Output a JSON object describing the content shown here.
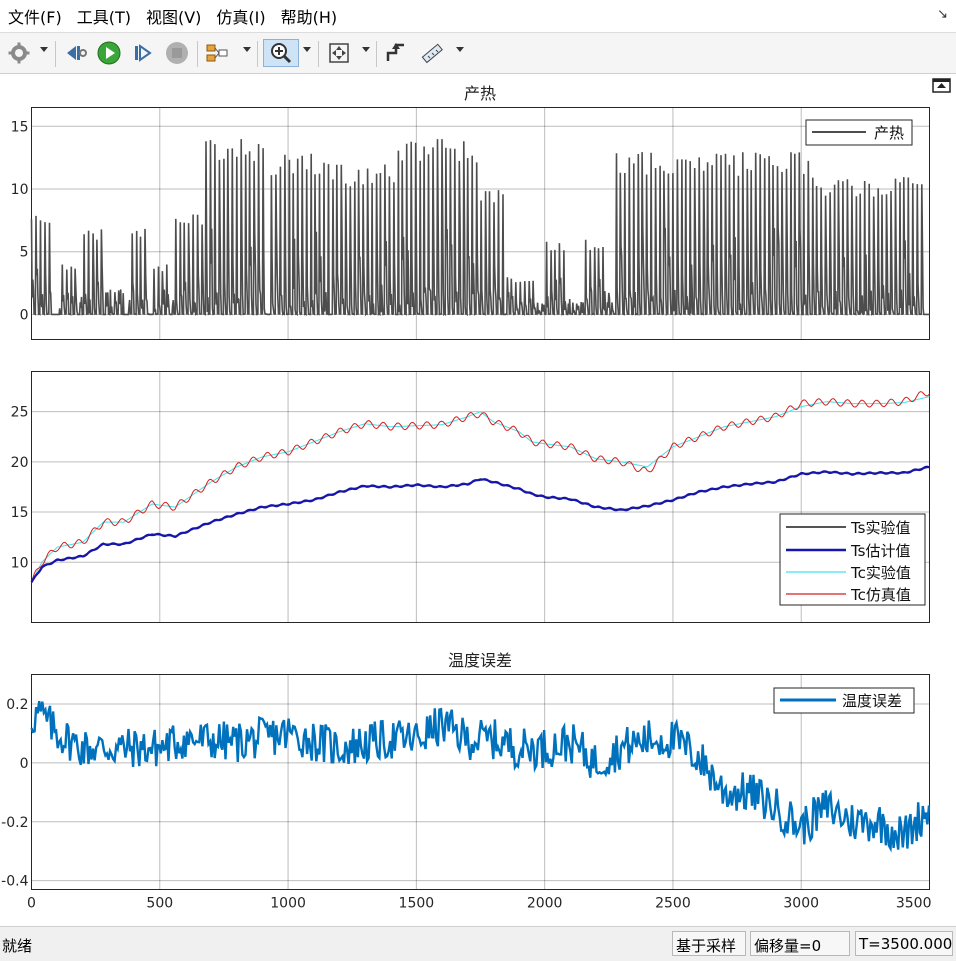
{
  "menu": [
    "文件(F)",
    "工具(T)",
    "视图(V)",
    "仿真(I)",
    "帮助(H)"
  ],
  "colors": {
    "heat": "#4d4d4d",
    "ts_exp": "#555555",
    "ts_est": "#1515b0",
    "tc_exp": "#3fe3ef",
    "tc_sim": "#d42020",
    "err": "#0072bd"
  },
  "chart_data": [
    {
      "type": "line",
      "title": "产热",
      "xlim": [
        0,
        3500
      ],
      "ylim": [
        -2,
        16.5
      ],
      "yticks": [
        0,
        5,
        10,
        15
      ],
      "xticks": [
        500,
        1000,
        1500,
        2000,
        2500,
        3000,
        3500
      ],
      "grid": true,
      "legend_position": "top-right",
      "series": [
        {
          "name": "产热",
          "segments": [
            {
              "x": [
                0,
                80
              ],
              "peak": 8
            },
            {
              "x": [
                110,
                180
              ],
              "peak": 4
            },
            {
              "x": [
                190,
                280
              ],
              "peak": 7
            },
            {
              "x": [
                290,
                360
              ],
              "peak": 2
            },
            {
              "x": [
                380,
                460
              ],
              "peak": 7
            },
            {
              "x": [
                470,
                540
              ],
              "peak": 4
            },
            {
              "x": [
                550,
                680
              ],
              "peak": 8
            },
            {
              "x": [
                680,
                920
              ],
              "peak": 14
            },
            {
              "x": [
                930,
                1160
              ],
              "peak": 13
            },
            {
              "x": [
                1170,
                1420
              ],
              "peak": 12
            },
            {
              "x": [
                1430,
                1740
              ],
              "peak": 14
            },
            {
              "x": [
                1740,
                1840
              ],
              "peak": 10
            },
            {
              "x": [
                1850,
                1960
              ],
              "peak": 3
            },
            {
              "x": [
                1960,
                2000
              ],
              "peak": 1
            },
            {
              "x": [
                2000,
                2080
              ],
              "peak": 6
            },
            {
              "x": [
                2080,
                2160
              ],
              "peak": 1
            },
            {
              "x": [
                2160,
                2230
              ],
              "peak": 6
            },
            {
              "x": [
                2230,
                2280
              ],
              "peak": 1
            },
            {
              "x": [
                2280,
                3030
              ],
              "peak": 13
            },
            {
              "x": [
                3030,
                3480
              ],
              "peak": 11
            }
          ]
        }
      ]
    },
    {
      "type": "line",
      "title": "",
      "xlim": [
        0,
        3500
      ],
      "ylim": [
        4,
        29
      ],
      "yticks": [
        10,
        15,
        20,
        25
      ],
      "xticks": [
        500,
        1000,
        1500,
        2000,
        2500,
        3000,
        3500
      ],
      "grid": true,
      "legend_position": "bottom-right",
      "x": [
        0,
        40,
        100,
        200,
        280,
        360,
        470,
        560,
        700,
        800,
        900,
        1000,
        1100,
        1200,
        1300,
        1400,
        1500,
        1600,
        1700,
        1750,
        1800,
        1900,
        1950,
        2000,
        2100,
        2200,
        2300,
        2400,
        2500,
        2600,
        2700,
        2800,
        2900,
        3000,
        3100,
        3200,
        3300,
        3400,
        3500
      ],
      "series": [
        {
          "name": "Ts实验值",
          "values": [
            8,
            9.5,
            10.2,
            10.6,
            11.8,
            11.8,
            12.8,
            12.6,
            14,
            14.8,
            15.5,
            15.8,
            16.2,
            17,
            17.6,
            17.5,
            17.7,
            17.5,
            17.8,
            18.3,
            18,
            17.3,
            16.8,
            16.5,
            16.3,
            15.5,
            15.2,
            15.6,
            16.2,
            17,
            17.5,
            17.8,
            18,
            18.8,
            19,
            18.8,
            18.9,
            18.9,
            19.5
          ]
        },
        {
          "name": "Ts估计值",
          "values": [
            8,
            9.5,
            10.2,
            10.6,
            11.8,
            11.8,
            12.8,
            12.6,
            14,
            14.8,
            15.5,
            15.8,
            16.2,
            17,
            17.6,
            17.5,
            17.7,
            17.5,
            17.8,
            18.3,
            18,
            17.3,
            16.8,
            16.5,
            16.3,
            15.5,
            15.2,
            15.6,
            16.2,
            17,
            17.5,
            17.8,
            18,
            18.8,
            19,
            18.8,
            18.9,
            18.9,
            19.5
          ]
        },
        {
          "name": "Tc实验值",
          "values": [
            8,
            10,
            11.5,
            12,
            14,
            14,
            15.8,
            15.5,
            18,
            19.5,
            20.5,
            21,
            22,
            23,
            23.8,
            23.5,
            23.6,
            23.7,
            24.5,
            25,
            24,
            23,
            22,
            21.8,
            21.5,
            20.3,
            20,
            19.5,
            21.5,
            22.5,
            23.5,
            24,
            24.5,
            25.5,
            26,
            25.8,
            25.8,
            25.9,
            26.5
          ]
        },
        {
          "name": "Tc仿真值",
          "values": [
            8,
            10,
            11.5,
            12,
            14,
            14,
            15.8,
            15.5,
            18,
            19.5,
            20.5,
            21,
            22,
            23,
            23.8,
            23.5,
            23.6,
            23.7,
            24.5,
            24.8,
            24,
            23,
            22,
            21.8,
            21.5,
            20.3,
            20,
            19,
            21.5,
            22.5,
            23.5,
            24,
            24.5,
            25.8,
            26,
            25.8,
            25.8,
            26,
            27
          ]
        }
      ]
    },
    {
      "type": "line",
      "title": "温度误差",
      "xlim": [
        0,
        3500
      ],
      "ylim": [
        -0.43,
        0.3
      ],
      "yticks": [
        -0.4,
        -0.2,
        0,
        0.2
      ],
      "ytick_labels": [
        "-0.4",
        "-0.2",
        "0",
        "0.2"
      ],
      "xticks": [
        0,
        500,
        1000,
        1500,
        2000,
        2500,
        3000,
        3500
      ],
      "grid": true,
      "legend_position": "top-right",
      "series": [
        {
          "name": "温度误差",
          "x": [
            0,
            30,
            100,
            200,
            300,
            400,
            500,
            600,
            800,
            1000,
            1200,
            1400,
            1500,
            1600,
            1700,
            1800,
            1900,
            2000,
            2100,
            2200,
            2300,
            2400,
            2500,
            2600,
            2700,
            2800,
            2900,
            3000,
            3100,
            3200,
            3300,
            3400,
            3500
          ],
          "values": [
            0.15,
            0.17,
            0.1,
            0.05,
            0.05,
            0.05,
            0.05,
            0.08,
            0.07,
            0.1,
            0.05,
            0.08,
            0.08,
            0.13,
            0.08,
            0.08,
            0.05,
            0.05,
            0.07,
            0.0,
            0.05,
            0.08,
            0.08,
            0.02,
            -0.1,
            -0.1,
            -0.15,
            -0.22,
            -0.15,
            -0.2,
            -0.2,
            -0.25,
            -0.15
          ]
        }
      ]
    }
  ],
  "status": {
    "ready": "就绪",
    "sampling": "基于采样",
    "offset": "偏移量=0",
    "time": "T=3500.000"
  }
}
